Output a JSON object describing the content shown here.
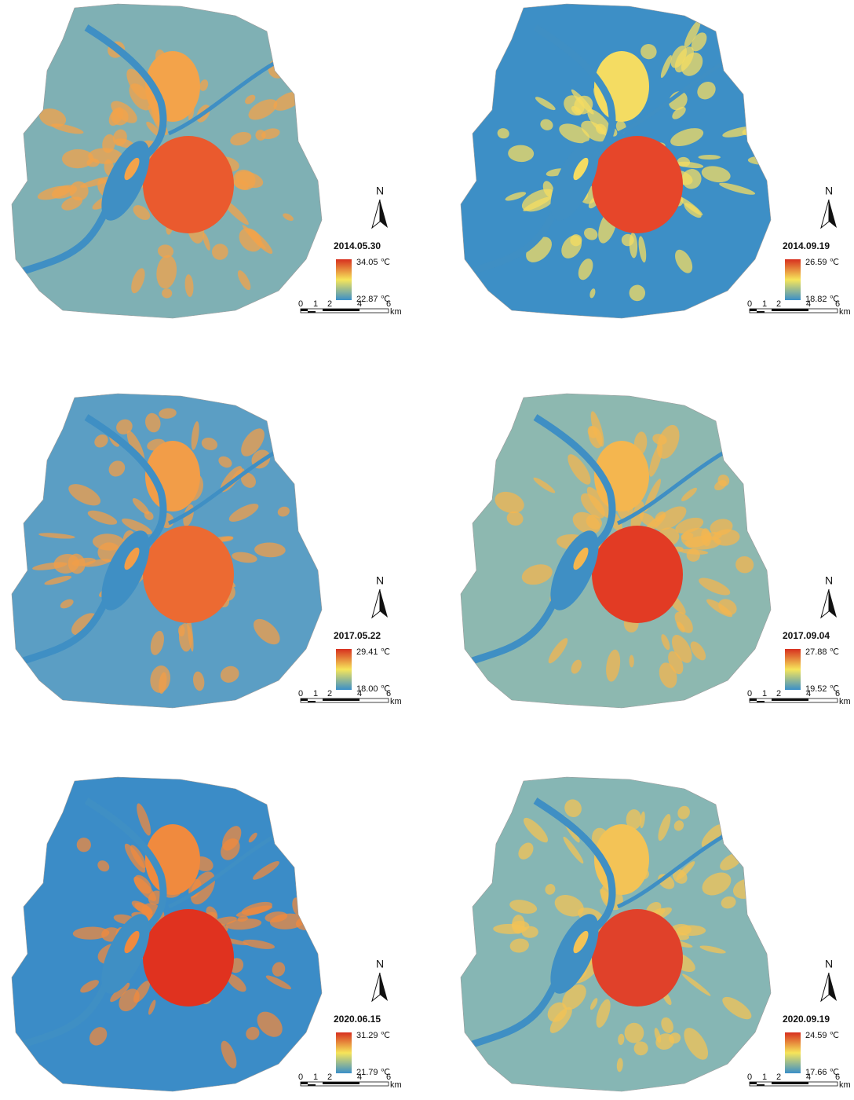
{
  "panels": [
    {
      "date": "2014.05.30",
      "max_label": "34.05 ℃",
      "min_label": "22.87 ℃"
    },
    {
      "date": "2014.09.19",
      "max_label": "26.59 ℃",
      "min_label": "18.82 ℃"
    },
    {
      "date": "2017.05.22",
      "max_label": "29.41 ℃",
      "min_label": "18.00 ℃"
    },
    {
      "date": "2017.09.04",
      "max_label": "27.88 ℃",
      "min_label": "19.52 ℃"
    },
    {
      "date": "2020.06.15",
      "max_label": "31.29 ℃",
      "min_label": "21.79 ℃"
    },
    {
      "date": "2020.09.19",
      "max_label": "24.59 ℃",
      "min_label": "17.66 ℃"
    }
  ],
  "north_label": "N",
  "scale_bar": {
    "ticks": [
      "0",
      "1",
      "2",
      "4",
      "6"
    ],
    "unit": "km"
  }
}
